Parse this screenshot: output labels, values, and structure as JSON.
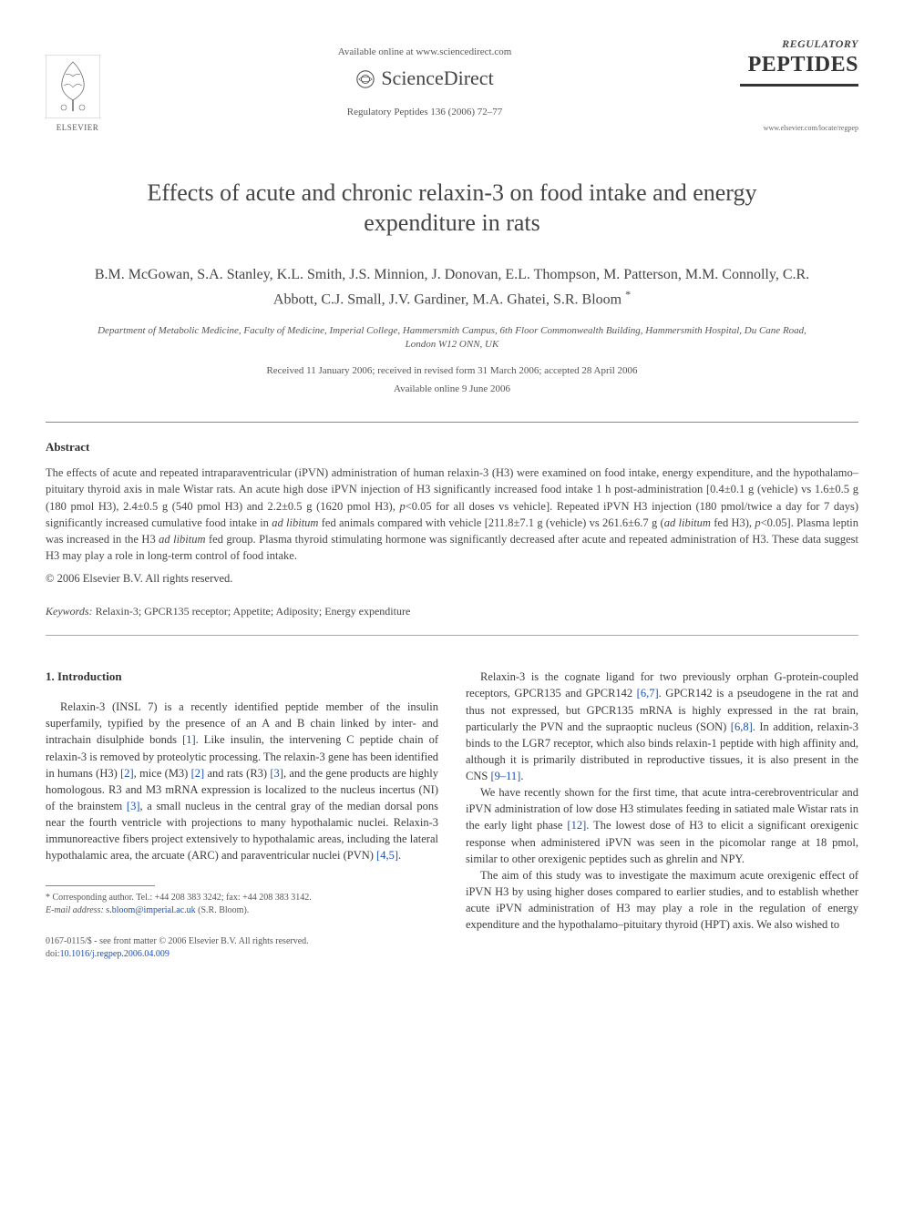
{
  "header": {
    "publisher": "ELSEVIER",
    "available_online": "Available online at www.sciencedirect.com",
    "sciencedirect": "ScienceDirect",
    "journal_ref": "Regulatory Peptides 136 (2006) 72–77",
    "journal_brand_top": "REGULATORY",
    "journal_brand_main": "PEPTIDES",
    "journal_url": "www.elsevier.com/locate/regpep"
  },
  "title": "Effects of acute and chronic relaxin-3 on food intake and energy expenditure in rats",
  "authors": "B.M. McGowan, S.A. Stanley, K.L. Smith, J.S. Minnion, J. Donovan, E.L. Thompson, M. Patterson, M.M. Connolly, C.R. Abbott, C.J. Small, J.V. Gardiner, M.A. Ghatei, S.R. Bloom ",
  "corresponding_marker": "*",
  "affiliation": "Department of Metabolic Medicine, Faculty of Medicine, Imperial College, Hammersmith Campus, 6th Floor Commonwealth Building, Hammersmith Hospital, Du Cane Road, London W12 ONN, UK",
  "dates_line1": "Received 11 January 2006; received in revised form 31 March 2006; accepted 28 April 2006",
  "dates_line2": "Available online 9 June 2006",
  "abstract": {
    "heading": "Abstract",
    "text_html": "The effects of acute and repeated intraparaventricular (iPVN) administration of human relaxin-3 (H3) were examined on food intake, energy expenditure, and the hypothalamo–pituitary thyroid axis in male Wistar rats. An acute high dose iPVN injection of H3 significantly increased food intake 1 h post-administration [0.4±0.1 g (vehicle) vs 1.6±0.5 g (180 pmol H3), 2.4±0.5 g (540 pmol H3) and 2.2±0.5 g (1620 pmol H3), <em>p</em><0.05 for all doses vs vehicle]. Repeated iPVN H3 injection (180 pmol/twice a day for 7 days) significantly increased cumulative food intake in <em>ad libitum</em> fed animals compared with vehicle [211.8±7.1 g (vehicle) vs 261.6±6.7 g (<em>ad libitum</em> fed H3), <em>p</em><0.05]. Plasma leptin was increased in the H3 <em>ad libitum</em> fed group. Plasma thyroid stimulating hormone was significantly decreased after acute and repeated administration of H3. These data suggest H3 may play a role in long-term control of food intake.",
    "copyright": "© 2006 Elsevier B.V. All rights reserved."
  },
  "keywords": {
    "label": "Keywords:",
    "text": " Relaxin-3; GPCR135 receptor; Appetite; Adiposity; Energy expenditure"
  },
  "body": {
    "intro_heading": "1. Introduction",
    "col1_p1_html": "Relaxin-3 (INSL 7) is a recently identified peptide member of the insulin superfamily, typified by the presence of an A and B chain linked by inter- and intrachain disulphide bonds <span class='ref-link'>[1]</span>. Like insulin, the intervening C peptide chain of relaxin-3 is removed by proteolytic processing. The relaxin-3 gene has been identified in humans (H3) <span class='ref-link'>[2]</span>, mice (M3) <span class='ref-link'>[2]</span> and rats (R3) <span class='ref-link'>[3]</span>, and the gene products are highly homologous. R3 and M3 mRNA expression is localized to the nucleus incertus (NI) of the brainstem <span class='ref-link'>[3]</span>, a small nucleus in the central gray of the median dorsal pons near the fourth ventricle with projections to many hypothalamic nuclei. Relaxin-3 immunoreactive fibers project extensively to hypothalamic areas, including the lateral hypothalamic area, the arcuate (ARC) and paraventricular nuclei (PVN) <span class='ref-link'>[4,5]</span>.",
    "col2_p1_html": "Relaxin-3 is the cognate ligand for two previously orphan G-protein-coupled receptors, GPCR135 and GPCR142 <span class='ref-link'>[6,7]</span>. GPCR142 is a pseudogene in the rat and thus not expressed, but GPCR135 mRNA is highly expressed in the rat brain, particularly the PVN and the supraoptic nucleus (SON) <span class='ref-link'>[6,8]</span>. In addition, relaxin-3 binds to the LGR7 receptor, which also binds relaxin-1 peptide with high affinity and, although it is primarily distributed in reproductive tissues, it is also present in the CNS <span class='ref-link'>[9–11]</span>.",
    "col2_p2_html": "We have recently shown for the first time, that acute intra-cerebroventricular and iPVN administration of low dose H3 stimulates feeding in satiated male Wistar rats in the early light phase <span class='ref-link'>[12]</span>. The lowest dose of H3 to elicit a significant orexigenic response when administered iPVN was seen in the picomolar range at 18 pmol, similar to other orexigenic peptides such as ghrelin and NPY.",
    "col2_p3_html": "The aim of this study was to investigate the maximum acute orexigenic effect of iPVN H3 by using higher doses compared to earlier studies, and to establish whether acute iPVN administration of H3 may play a role in the regulation of energy expenditure and the hypothalamo–pituitary thyroid (HPT) axis. We also wished to"
  },
  "footnote": {
    "corresponding": "* Corresponding author. Tel.: +44 208 383 3242; fax: +44 208 383 3142.",
    "email_label": "E-mail address:",
    "email": "s.bloom@imperial.ac.uk",
    "email_suffix": " (S.R. Bloom)."
  },
  "bottom": {
    "issn": "0167-0115/$ - see front matter © 2006 Elsevier B.V. All rights reserved.",
    "doi_label": "doi:",
    "doi": "10.1016/j.regpep.2006.04.009"
  },
  "colors": {
    "text": "#3a3a3a",
    "link": "#1a4fb3",
    "heading": "#333333",
    "muted": "#555555",
    "rule": "#888888"
  }
}
